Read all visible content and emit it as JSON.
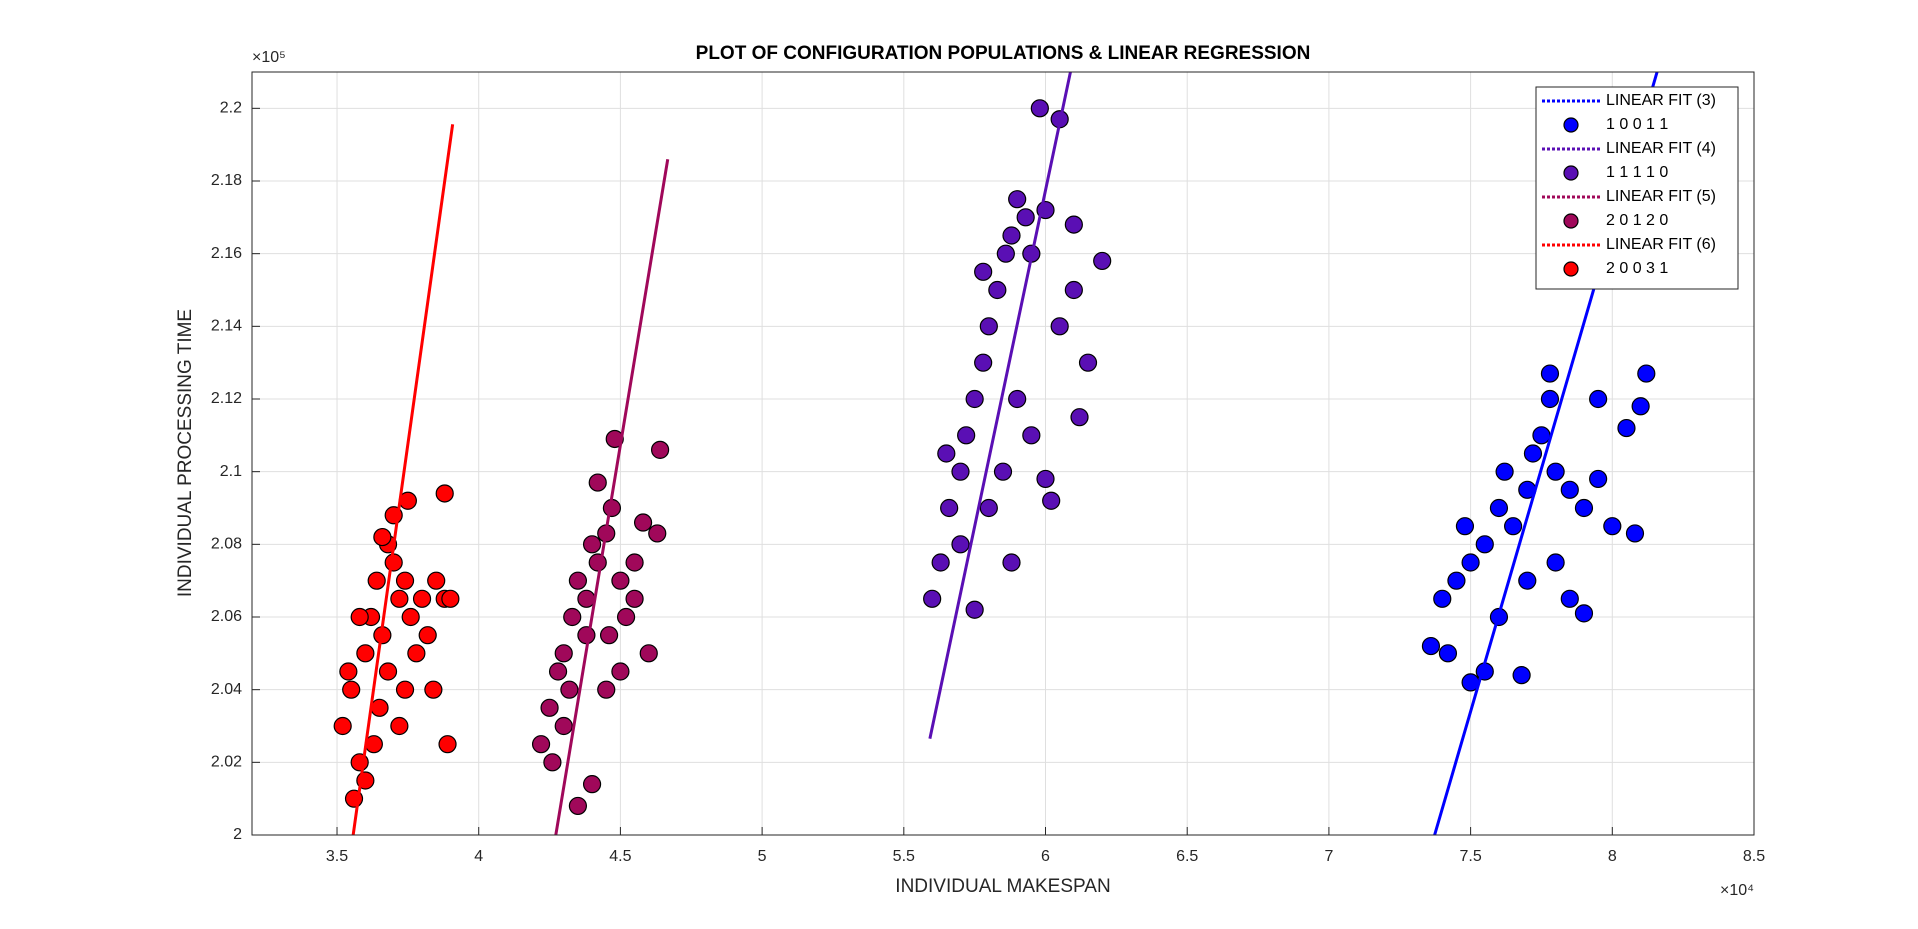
{
  "chart_data": {
    "type": "scatter",
    "title": "PLOT OF CONFIGURATION POPULATIONS & LINEAR REGRESSION",
    "x_label": "INDIVIDUAL MAKESPAN",
    "y_label": "INDIVIDUAL PROCESSING TIME",
    "x_exponent_label": "×10⁴",
    "y_exponent_label": "×10⁵",
    "xlim": [
      3.2,
      8.5
    ],
    "ylim": [
      2,
      2.21
    ],
    "xticks": [
      3.5,
      4,
      4.5,
      5,
      5.5,
      6,
      6.5,
      7,
      7.5,
      8,
      8.5
    ],
    "yticks": [
      2,
      2.02,
      2.04,
      2.06,
      2.08,
      2.1,
      2.12,
      2.14,
      2.16,
      2.18,
      2.2
    ],
    "grid": true,
    "legend_position": "upper-right",
    "series": [
      {
        "name": "LINEAR FIT (3)",
        "mode": "line",
        "color": "#0000ff",
        "x": [
          7.373,
          8.158
        ],
        "y": [
          2,
          2.21
        ]
      },
      {
        "name": "1 0 0 1 1",
        "mode": "markers",
        "color": "#0000ff",
        "x": [
          7.36,
          7.4,
          7.45,
          7.48,
          7.5,
          7.55,
          7.6,
          7.62,
          7.65,
          7.7,
          7.72,
          7.75,
          7.78,
          7.8,
          7.85,
          7.9,
          7.95,
          8.0,
          8.05,
          8.1,
          8.12,
          8.08,
          7.78,
          7.68,
          7.55,
          7.5,
          7.9,
          7.6,
          7.7,
          7.8,
          7.42,
          7.85,
          7.95
        ],
        "y": [
          2.052,
          2.065,
          2.07,
          2.085,
          2.075,
          2.08,
          2.09,
          2.1,
          2.085,
          2.095,
          2.105,
          2.11,
          2.12,
          2.1,
          2.095,
          2.09,
          2.12,
          2.085,
          2.112,
          2.118,
          2.127,
          2.083,
          2.127,
          2.044,
          2.045,
          2.042,
          2.061,
          2.06,
          2.07,
          2.075,
          2.05,
          2.065,
          2.098
        ]
      },
      {
        "name": "LINEAR FIT (4)",
        "mode": "line",
        "color": "#5a0fb4",
        "x": [
          5.592,
          6.088
        ],
        "y": [
          2.0265,
          2.21
        ]
      },
      {
        "name": "1 1 1 1 0",
        "mode": "markers",
        "color": "#5a0fb4",
        "x": [
          5.6,
          5.63,
          5.66,
          5.7,
          5.72,
          5.75,
          5.78,
          5.8,
          5.83,
          5.86,
          5.88,
          5.9,
          5.93,
          5.95,
          6.0,
          5.98,
          6.05,
          6.1,
          6.15,
          6.2,
          6.1,
          5.9,
          5.95,
          6.0,
          6.02,
          5.88,
          5.75,
          5.7,
          5.8,
          5.85,
          6.12,
          5.65,
          5.78,
          6.05
        ],
        "y": [
          2.065,
          2.075,
          2.09,
          2.1,
          2.11,
          2.12,
          2.13,
          2.14,
          2.15,
          2.16,
          2.165,
          2.175,
          2.17,
          2.16,
          2.172,
          2.2,
          2.197,
          2.15,
          2.13,
          2.158,
          2.168,
          2.12,
          2.11,
          2.098,
          2.092,
          2.075,
          2.062,
          2.08,
          2.09,
          2.1,
          2.115,
          2.105,
          2.155,
          2.14
        ]
      },
      {
        "name": "LINEAR FIT (5)",
        "mode": "line",
        "color": "#a0085a",
        "x": [
          4.272,
          4.667
        ],
        "y": [
          2,
          2.186
        ]
      },
      {
        "name": "2 0 1 2 0",
        "mode": "markers",
        "color": "#a0085a",
        "x": [
          4.22,
          4.25,
          4.28,
          4.3,
          4.33,
          4.35,
          4.38,
          4.4,
          4.42,
          4.45,
          4.47,
          4.5,
          4.52,
          4.55,
          4.6,
          4.63,
          4.64,
          4.48,
          4.42,
          4.35,
          4.4,
          4.3,
          4.45,
          4.5,
          4.26,
          4.58,
          4.38,
          4.46,
          4.32,
          4.55
        ],
        "y": [
          2.025,
          2.035,
          2.045,
          2.05,
          2.06,
          2.07,
          2.065,
          2.08,
          2.075,
          2.083,
          2.09,
          2.07,
          2.06,
          2.065,
          2.05,
          2.083,
          2.106,
          2.109,
          2.097,
          2.008,
          2.014,
          2.03,
          2.04,
          2.045,
          2.02,
          2.086,
          2.055,
          2.055,
          2.04,
          2.075
        ]
      },
      {
        "name": "LINEAR FIT (6)",
        "mode": "line",
        "color": "#ff0000",
        "x": [
          3.557,
          3.908
        ],
        "y": [
          2,
          2.1956
        ]
      },
      {
        "name": "2 0 0 3 1",
        "mode": "markers",
        "color": "#ff0000",
        "x": [
          3.52,
          3.55,
          3.58,
          3.6,
          3.62,
          3.64,
          3.66,
          3.68,
          3.7,
          3.72,
          3.74,
          3.76,
          3.78,
          3.8,
          3.82,
          3.85,
          3.88,
          3.9,
          3.88,
          3.89,
          3.75,
          3.7,
          3.56,
          3.6,
          3.65,
          3.68,
          3.72,
          3.54,
          3.63,
          3.66,
          3.84,
          3.74,
          3.58
        ],
        "y": [
          2.03,
          2.04,
          2.02,
          2.05,
          2.06,
          2.07,
          2.055,
          2.08,
          2.075,
          2.065,
          2.07,
          2.06,
          2.05,
          2.065,
          2.055,
          2.07,
          2.065,
          2.065,
          2.094,
          2.025,
          2.092,
          2.088,
          2.01,
          2.015,
          2.035,
          2.045,
          2.03,
          2.045,
          2.025,
          2.082,
          2.04,
          2.04,
          2.06
        ]
      }
    ]
  }
}
